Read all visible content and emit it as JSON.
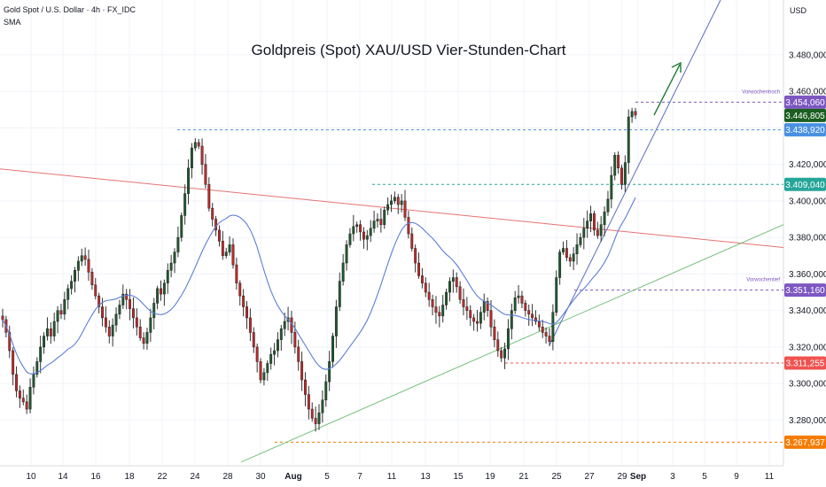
{
  "header": {
    "symbol_line": "Gold Spot / U.S. Dollar · 4h · FX_IDC",
    "indicator": "SMA",
    "currency": "USD"
  },
  "chart_data": {
    "type": "candlestick",
    "title": "Goldpreis (Spot) XAU/USD Vier-Stunden-Chart",
    "ylim": [
      3255,
      3510
    ],
    "y_ticks": [
      {
        "value": 3480,
        "label": "3.480,000"
      },
      {
        "value": 3460,
        "label": "3.460,000"
      },
      {
        "value": 3440,
        "label": "3.440,000"
      },
      {
        "value": 3420,
        "label": "3.420,000"
      },
      {
        "value": 3400,
        "label": "3.400,000"
      },
      {
        "value": 3380,
        "label": "3.380,000"
      },
      {
        "value": 3360,
        "label": "3.360,000"
      },
      {
        "value": 3340,
        "label": "3.340,000"
      },
      {
        "value": 3320,
        "label": "3.320,000"
      },
      {
        "value": 3300,
        "label": "3.300,000"
      },
      {
        "value": 3280,
        "label": "3.280,000"
      }
    ],
    "x_ticks": [
      {
        "label": "10",
        "bold": false
      },
      {
        "label": "14",
        "bold": false
      },
      {
        "label": "16",
        "bold": false
      },
      {
        "label": "18",
        "bold": false
      },
      {
        "label": "22",
        "bold": false
      },
      {
        "label": "24",
        "bold": false
      },
      {
        "label": "28",
        "bold": false
      },
      {
        "label": "30",
        "bold": false
      },
      {
        "label": "Aug",
        "bold": true
      },
      {
        "label": "5",
        "bold": false
      },
      {
        "label": "7",
        "bold": false
      },
      {
        "label": "11",
        "bold": false
      },
      {
        "label": "13",
        "bold": false
      },
      {
        "label": "15",
        "bold": false
      },
      {
        "label": "19",
        "bold": false
      },
      {
        "label": "21",
        "bold": false
      },
      {
        "label": "25",
        "bold": false
      },
      {
        "label": "27",
        "bold": false
      },
      {
        "label": "29",
        "bold": false
      },
      {
        "label": "Sep",
        "bold": true
      },
      {
        "label": "3",
        "bold": false
      },
      {
        "label": "5",
        "bold": false
      },
      {
        "label": "9",
        "bold": false
      },
      {
        "label": "11",
        "bold": false
      }
    ],
    "price_tags": [
      {
        "value": 3454.06,
        "label": "3.454,060",
        "color": "#7e57c2",
        "note": "Vorwochenhoch"
      },
      {
        "value": 3446.805,
        "label": "3.446,805",
        "color": "#1b5e20",
        "note": ""
      },
      {
        "value": 3438.92,
        "label": "3.438,920",
        "color": "#4a90e2",
        "note": ""
      },
      {
        "value": 3409.04,
        "label": "3.409,040",
        "color": "#26a69a",
        "note": ""
      },
      {
        "value": 3351.16,
        "label": "3.351,160",
        "color": "#7e57c2",
        "note": "Vorwochentief"
      },
      {
        "value": 3311.255,
        "label": "3.311,255",
        "color": "#ef5350",
        "note": ""
      },
      {
        "value": 3267.937,
        "label": "3.267,937",
        "color": "#f57c00",
        "note": ""
      }
    ],
    "series_close": [
      3335,
      3328,
      3318,
      3305,
      3296,
      3292,
      3290,
      3286,
      3298,
      3305,
      3312,
      3320,
      3326,
      3330,
      3326,
      3334,
      3340,
      3338,
      3346,
      3352,
      3356,
      3362,
      3367,
      3370,
      3368,
      3361,
      3354,
      3348,
      3342,
      3336,
      3331,
      3326,
      3332,
      3338,
      3343,
      3349,
      3346,
      3341,
      3336,
      3331,
      3325,
      3322,
      3328,
      3336,
      3344,
      3352,
      3349,
      3355,
      3362,
      3366,
      3372,
      3380,
      3392,
      3404,
      3418,
      3429,
      3432,
      3430,
      3420,
      3409,
      3396,
      3390,
      3384,
      3378,
      3370,
      3372,
      3376,
      3365,
      3355,
      3348,
      3342,
      3336,
      3328,
      3320,
      3312,
      3302,
      3306,
      3311,
      3316,
      3318,
      3324,
      3330,
      3334,
      3336,
      3328,
      3320,
      3312,
      3302,
      3294,
      3286,
      3281,
      3278,
      3284,
      3291,
      3301,
      3312,
      3326,
      3342,
      3356,
      3366,
      3376,
      3382,
      3386,
      3387,
      3383,
      3379,
      3381,
      3385,
      3389,
      3390,
      3387,
      3395,
      3398,
      3400,
      3402,
      3398,
      3400,
      3391,
      3382,
      3374,
      3366,
      3359,
      3355,
      3350,
      3346,
      3342,
      3339,
      3337,
      3343,
      3350,
      3356,
      3358,
      3353,
      3346,
      3342,
      3340,
      3336,
      3334,
      3333,
      3339,
      3345,
      3340,
      3331,
      3324,
      3318,
      3314,
      3319,
      3330,
      3340,
      3347,
      3348,
      3344,
      3340,
      3338,
      3336,
      3334,
      3331,
      3328,
      3326,
      3323,
      3339,
      3358,
      3372,
      3374,
      3369,
      3367,
      3371,
      3376,
      3380,
      3385,
      3389,
      3393,
      3384,
      3381,
      3387,
      3394,
      3401,
      3414,
      3425,
      3418,
      3409,
      3421,
      3446,
      3449,
      3447
    ],
    "series_open": [
      3337
    ],
    "highlighted_last_value": 3446.805
  }
}
